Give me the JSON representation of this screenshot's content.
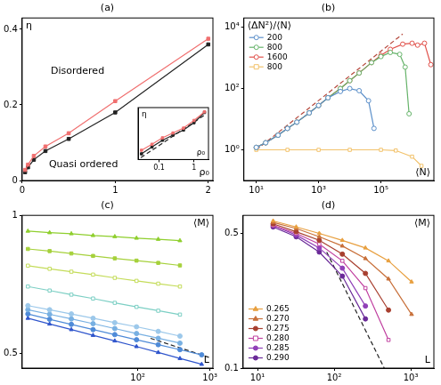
{
  "chart_data": [
    {
      "type": "line",
      "title": "(a)",
      "x_label": "ρ₀",
      "y_label": "η",
      "annotations": [
        "Disordered",
        "Quasi ordered"
      ],
      "xlim": [
        0,
        2.05
      ],
      "xticks": [
        0,
        1,
        2
      ],
      "ylim": [
        0,
        0.43
      ],
      "yticks": [
        0,
        0.2,
        0.4
      ],
      "grid": false,
      "x": [
        0.03125,
        0.0625,
        0.125,
        0.25,
        0.5,
        1,
        2
      ],
      "series": [
        {
          "color": "#f07070",
          "marker": "square",
          "values": [
            0.028,
            0.042,
            0.065,
            0.09,
            0.125,
            0.21,
            0.375
          ]
        },
        {
          "color": "#222222",
          "marker": "square",
          "values": [
            0.022,
            0.035,
            0.055,
            0.078,
            0.11,
            0.18,
            0.36
          ]
        }
      ]
    },
    {
      "type": "line",
      "title": "(b)",
      "x_label": "⟨N⟩",
      "y_label": "⟨ΔN²⟩/⟨N⟩",
      "log": true,
      "legend": "upper left",
      "grid": false,
      "xlim": [
        4,
        5000000
      ],
      "xticks": [
        {
          "value": 10,
          "label": "10¹"
        },
        {
          "value": 1000,
          "label": "10³"
        },
        {
          "value": 100000,
          "label": "10⁵"
        }
      ],
      "ylim": [
        0.1,
        20000
      ],
      "yticks": [
        {
          "value": 1,
          "label": "10⁰"
        },
        {
          "value": 100,
          "label": "10²"
        },
        {
          "value": 10000,
          "label": "10⁴"
        }
      ],
      "series": [
        {
          "name": "200",
          "color": "#5b8fc9",
          "marker": "open_circle",
          "x": [
            10,
            20,
            50,
            100,
            200,
            500,
            1000,
            2000,
            5000,
            10000,
            20000,
            40000,
            60000
          ],
          "values": [
            1.2,
            1.7,
            3,
            5,
            8,
            16,
            28,
            50,
            80,
            100,
            85,
            40,
            5
          ]
        },
        {
          "name": "800",
          "color": "#66b36a",
          "marker": "open_circle",
          "x": [
            10,
            20,
            50,
            100,
            200,
            500,
            1000,
            2000,
            5000,
            10000,
            20000,
            50000,
            100000,
            200000,
            400000,
            600000,
            800000
          ],
          "values": [
            1.2,
            1.7,
            3,
            5,
            8,
            16,
            28,
            50,
            100,
            180,
            320,
            700,
            1100,
            1500,
            1300,
            500,
            15
          ]
        },
        {
          "name": "1600",
          "color": "#e0504a",
          "marker": "open_circle",
          "x": [
            10,
            20,
            50,
            100,
            200,
            500,
            1000,
            2000,
            5000,
            10000,
            20000,
            50000,
            100000,
            200000,
            500000,
            1000000,
            1500000,
            2500000,
            4000000
          ],
          "values": [
            1.2,
            1.7,
            3,
            5,
            8,
            16,
            28,
            50,
            100,
            180,
            320,
            700,
            1200,
            1900,
            2800,
            3000,
            2600,
            3000,
            600
          ]
        },
        {
          "name": "800",
          "color": "#f2c26b",
          "marker": "open_square",
          "x": [
            10,
            100,
            1000,
            10000,
            100000,
            300000,
            1000000,
            2000000
          ],
          "values": [
            1,
            1,
            1,
            1,
            1,
            0.95,
            0.6,
            0.3
          ]
        },
        {
          "color": "#b5483c",
          "line_style": "dashed",
          "x": [
            10,
            500000
          ],
          "values": [
            1,
            6000
          ]
        }
      ]
    },
    {
      "type": "line",
      "title": "(c)",
      "x_label": "L",
      "y_label": "⟨M⟩",
      "log": true,
      "grid": false,
      "xlim": [
        2.5,
        1100
      ],
      "xticks": [
        {
          "value": 100,
          "label": "10²"
        },
        {
          "value": 1000,
          "label": "10³"
        }
      ],
      "ylim": [
        0.465,
        1
      ],
      "yticks": [
        0.5,
        1
      ],
      "x": [
        3,
        6,
        12,
        24,
        48,
        96,
        192,
        384,
        768
      ],
      "series": [
        {
          "color": "#8fcf2e",
          "marker": "triangle",
          "values": [
            0.924,
            0.917,
            0.912,
            0.904,
            0.899,
            0.892,
            0.887,
            0.881,
            null
          ]
        },
        {
          "color": "#a6d13c",
          "marker": "square",
          "values": [
            0.845,
            0.836,
            0.826,
            0.816,
            0.806,
            0.797,
            0.788,
            0.778,
            null
          ]
        },
        {
          "color": "#c4dc5a",
          "marker": "open_square",
          "values": [
            0.777,
            0.765,
            0.754,
            0.743,
            0.731,
            0.72,
            0.71,
            0.7,
            null
          ]
        },
        {
          "color": "#7ccfc4",
          "marker": "open_square",
          "values": [
            0.7,
            0.686,
            0.672,
            0.659,
            0.645,
            0.632,
            0.62,
            0.608,
            null
          ]
        },
        {
          "color": "#9cc8ea",
          "marker": "circle",
          "values": [
            0.636,
            0.623,
            0.61,
            0.597,
            0.584,
            0.572,
            0.559,
            0.546,
            null
          ]
        },
        {
          "color": "#78b0e2",
          "marker": "circle",
          "values": [
            0.623,
            0.609,
            0.595,
            0.581,
            0.567,
            0.553,
            0.54,
            0.527,
            null
          ]
        },
        {
          "color": "#4f8bd8",
          "marker": "circle",
          "values": [
            0.61,
            0.594,
            0.579,
            0.564,
            0.55,
            0.536,
            0.523,
            0.51,
            0.497
          ]
        },
        {
          "color": "#2f55cc",
          "marker": "triangle",
          "values": [
            0.597,
            0.58,
            0.564,
            0.548,
            0.533,
            0.518,
            0.503,
            0.488,
            0.474
          ]
        },
        {
          "color": "#222222",
          "line_style": "dashed",
          "x": [
            150,
            1000
          ],
          "values": [
            0.54,
            0.49
          ]
        }
      ]
    },
    {
      "type": "line",
      "title": "(d)",
      "x_label": "L",
      "y_label": "⟨M⟩",
      "log": true,
      "legend": "lower left",
      "grid": false,
      "xlim": [
        6.5,
        2000
      ],
      "xticks": [
        {
          "value": 10,
          "label": "10¹"
        },
        {
          "value": 100,
          "label": "10²"
        },
        {
          "value": 1000,
          "label": "10³"
        }
      ],
      "ylim": [
        0.1,
        0.62
      ],
      "yticks": [
        0.1,
        0.5
      ],
      "x": [
        16,
        32,
        64,
        128,
        256,
        512,
        1024
      ],
      "series": [
        {
          "name": "0.265",
          "color": "#e8a040",
          "marker": "triangle",
          "values": [
            0.58,
            0.54,
            0.5,
            0.46,
            0.42,
            0.36,
            0.28
          ]
        },
        {
          "name": "0.270",
          "color": "#c8703a",
          "marker": "triangle",
          "values": [
            0.57,
            0.53,
            0.48,
            0.43,
            0.37,
            0.29,
            0.19
          ]
        },
        {
          "name": "0.275",
          "color": "#a84030",
          "marker": "circle",
          "values": [
            0.56,
            0.51,
            0.46,
            0.39,
            0.31,
            0.2,
            null
          ]
        },
        {
          "name": "0.280",
          "color": "#c040a0",
          "marker": "open_square",
          "values": [
            0.55,
            0.5,
            0.44,
            0.36,
            0.26,
            0.14,
            null
          ]
        },
        {
          "name": "0.285",
          "color": "#9040b8",
          "marker": "circle",
          "values": [
            0.55,
            0.49,
            0.42,
            0.33,
            0.21,
            null,
            null
          ]
        },
        {
          "name": "0.290",
          "color": "#6a2a98",
          "marker": "circle",
          "values": [
            0.54,
            0.48,
            0.4,
            0.3,
            0.18,
            null,
            null
          ]
        },
        {
          "color": "#222222",
          "line_style": "dashed",
          "x": [
            80,
            450
          ],
          "values": [
            0.4,
            0.1
          ]
        }
      ]
    },
    {
      "type": "line",
      "x_label": "ρ₀",
      "y_label": "η",
      "log": true,
      "tick_labels": "x",
      "grid": false,
      "xlim": [
        0.025,
        2.6
      ],
      "xticks": [
        0.1,
        1
      ],
      "ylim": [
        0.015,
        0.5
      ],
      "x": [
        0.03125,
        0.0625,
        0.125,
        0.25,
        0.5,
        1,
        2
      ],
      "series": [
        {
          "color": "#f07070",
          "marker": "square",
          "values": [
            0.028,
            0.042,
            0.065,
            0.09,
            0.125,
            0.21,
            0.375
          ]
        },
        {
          "color": "#222222",
          "marker": "square",
          "values": [
            0.022,
            0.035,
            0.055,
            0.078,
            0.11,
            0.18,
            0.36
          ]
        },
        {
          "color": "#222222",
          "line_style": "dashed",
          "x": [
            0.03,
            2
          ],
          "values": [
            0.017,
            0.3
          ]
        }
      ]
    }
  ]
}
